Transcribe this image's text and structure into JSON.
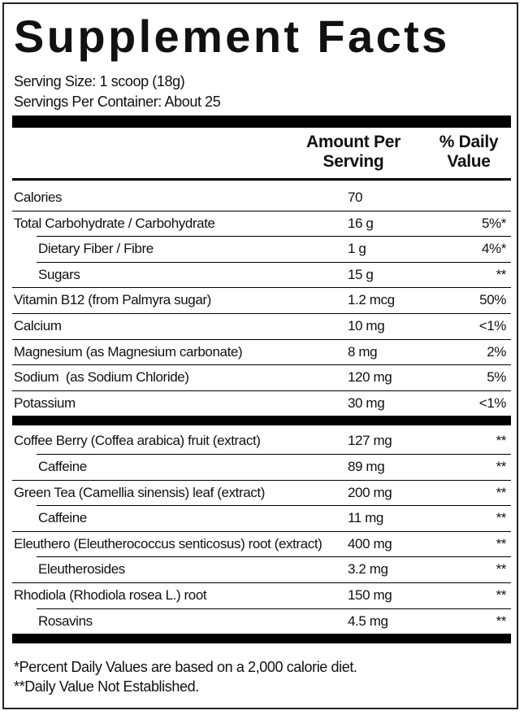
{
  "header": {
    "title": "Supplement Facts",
    "serving_size": "Serving Size: 1 scoop (18g)",
    "servings_per_container": "Servings Per Container: About 25"
  },
  "table": {
    "columns": {
      "amount": "Amount Per Serving",
      "daily_value": "% Daily Value"
    },
    "groups": [
      [
        {
          "name": "Calories",
          "amount": "70",
          "indent": false
        },
        {
          "name": "Total Carbohydrate / Carbohydrate",
          "amount": "16 g",
          "daily_value": "5%*",
          "indent": false
        },
        {
          "name": "Dietary Fiber / Fibre",
          "amount": "1 g",
          "daily_value": "4%*",
          "indent": true
        },
        {
          "name": "Sugars",
          "amount": "15 g",
          "daily_value": "**",
          "indent": true
        },
        {
          "name": "Vitamin B12 (from Palmyra sugar)",
          "amount": "1.2 mcg",
          "daily_value": "50%",
          "indent": false
        },
        {
          "name": "Calcium",
          "amount": "10 mg",
          "daily_value": "<1%",
          "indent": false
        },
        {
          "name": "Magnesium (as Magnesium carbonate)",
          "amount": "8 mg",
          "daily_value": "2%",
          "indent": false
        },
        {
          "name": "Sodium  (as Sodium Chloride)",
          "amount": "120 mg",
          "daily_value": "5%",
          "indent": false
        },
        {
          "name": "Potassium",
          "amount": "30 mg",
          "daily_value": "<1%",
          "indent": false
        }
      ],
      [
        {
          "name": "Coffee Berry (Coffea arabica) fruit (extract)",
          "amount": "127 mg",
          "daily_value": "**",
          "indent": false
        },
        {
          "name": "Caffeine",
          "amount": "89 mg",
          "daily_value": "**",
          "indent": true
        },
        {
          "name": "Green Tea (Camellia sinensis) leaf (extract)",
          "amount": "200 mg",
          "daily_value": "**",
          "indent": false
        },
        {
          "name": "Caffeine",
          "amount": "11 mg",
          "daily_value": "**",
          "indent": true
        },
        {
          "name": "Eleuthero (Eleutherococcus senticosus) root (extract)",
          "amount": "400 mg",
          "daily_value": "**",
          "indent": false
        },
        {
          "name": "Eleutherosides",
          "amount": "3.2 mg",
          "daily_value": "**",
          "indent": true
        },
        {
          "name": "Rhodiola (Rhodiola rosea L.) root",
          "amount": "150 mg",
          "daily_value": "**",
          "indent": false
        },
        {
          "name": "Rosavins",
          "amount": "4.5 mg",
          "daily_value": "**",
          "indent": true
        }
      ]
    ]
  },
  "footnotes": [
    "*Percent Daily Values are based on a 2,000 calorie diet.",
    "**Daily Value Not Established."
  ]
}
